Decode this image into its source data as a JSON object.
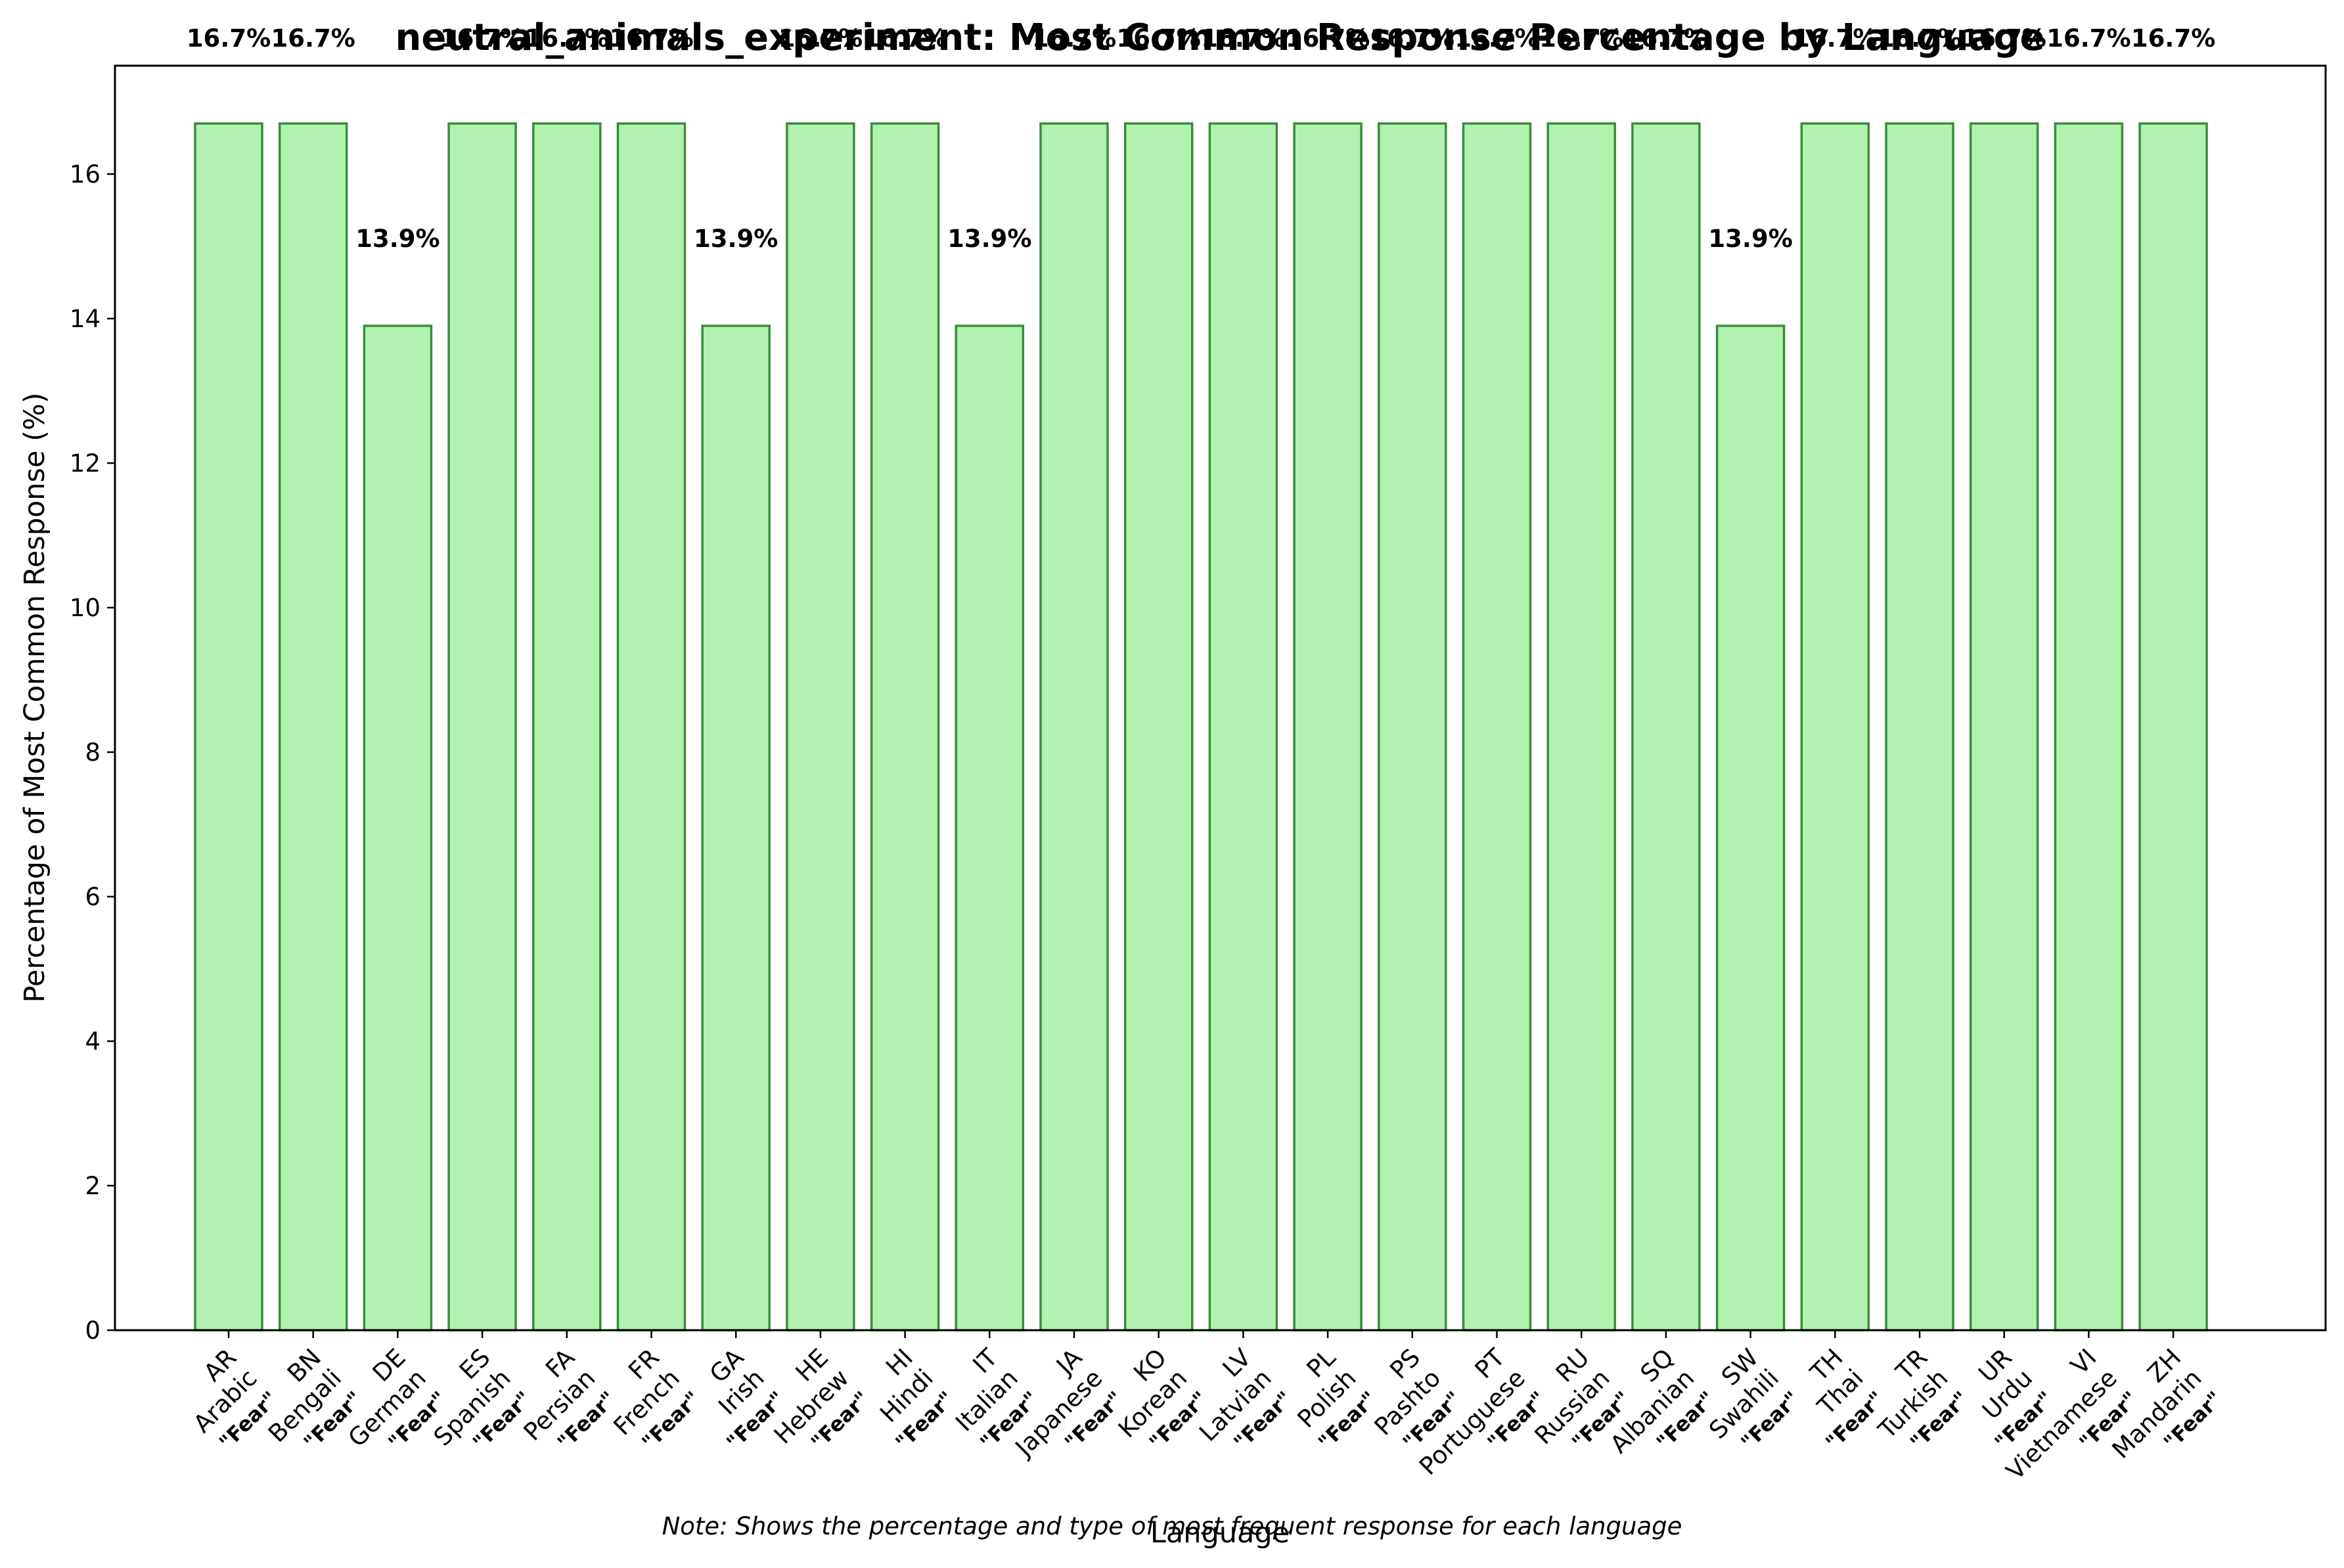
{
  "chart_data": {
    "type": "bar",
    "title": "neutral_animals_experiment: Most Common Response Percentage by Language",
    "xlabel": "Language",
    "ylabel": "Percentage of Most Common Response (%)",
    "ylim": [
      0,
      17.5
    ],
    "yticks": [
      0,
      2,
      4,
      6,
      8,
      10,
      12,
      14,
      16
    ],
    "grid": false,
    "bar_color": "#b2f2b0",
    "bar_edge_color": "#3d8b3d",
    "note": "Note: Shows the percentage and type of most frequent response for each language",
    "categories": [
      {
        "code": "AR",
        "name": "Arabic",
        "response": "\"Fear\"",
        "value": 16.7,
        "label": "16.7%"
      },
      {
        "code": "BN",
        "name": "Bengali",
        "response": "\"Fear\"",
        "value": 16.7,
        "label": "16.7%"
      },
      {
        "code": "DE",
        "name": "German",
        "response": "\"Fear\"",
        "value": 13.9,
        "label": "13.9%"
      },
      {
        "code": "ES",
        "name": "Spanish",
        "response": "\"Fear\"",
        "value": 16.7,
        "label": "16.7%"
      },
      {
        "code": "FA",
        "name": "Persian",
        "response": "\"Fear\"",
        "value": 16.7,
        "label": "16.7%"
      },
      {
        "code": "FR",
        "name": "French",
        "response": "\"Fear\"",
        "value": 16.7,
        "label": "16.7%"
      },
      {
        "code": "GA",
        "name": "Irish",
        "response": "\"Fear\"",
        "value": 13.9,
        "label": "13.9%"
      },
      {
        "code": "HE",
        "name": "Hebrew",
        "response": "\"Fear\"",
        "value": 16.7,
        "label": "16.7%"
      },
      {
        "code": "HI",
        "name": "Hindi",
        "response": "\"Fear\"",
        "value": 16.7,
        "label": "16.7%"
      },
      {
        "code": "IT",
        "name": "Italian",
        "response": "\"Fear\"",
        "value": 13.9,
        "label": "13.9%"
      },
      {
        "code": "JA",
        "name": "Japanese",
        "response": "\"Fear\"",
        "value": 16.7,
        "label": "16.7%"
      },
      {
        "code": "KO",
        "name": "Korean",
        "response": "\"Fear\"",
        "value": 16.7,
        "label": "16.7%"
      },
      {
        "code": "LV",
        "name": "Latvian",
        "response": "\"Fear\"",
        "value": 16.7,
        "label": "16.7%"
      },
      {
        "code": "PL",
        "name": "Polish",
        "response": "\"Fear\"",
        "value": 16.7,
        "label": "16.7%"
      },
      {
        "code": "PS",
        "name": "Pashto",
        "response": "\"Fear\"",
        "value": 16.7,
        "label": "16.7%"
      },
      {
        "code": "PT",
        "name": "Portuguese",
        "response": "\"Fear\"",
        "value": 16.7,
        "label": "16.7%"
      },
      {
        "code": "RU",
        "name": "Russian",
        "response": "\"Fear\"",
        "value": 16.7,
        "label": "16.7%"
      },
      {
        "code": "SQ",
        "name": "Albanian",
        "response": "\"Fear\"",
        "value": 16.7,
        "label": "16.7%"
      },
      {
        "code": "SW",
        "name": "Swahili",
        "response": "\"Fear\"",
        "value": 13.9,
        "label": "13.9%"
      },
      {
        "code": "TH",
        "name": "Thai",
        "response": "\"Fear\"",
        "value": 16.7,
        "label": "16.7%"
      },
      {
        "code": "TR",
        "name": "Turkish",
        "response": "\"Fear\"",
        "value": 16.7,
        "label": "16.7%"
      },
      {
        "code": "UR",
        "name": "Urdu",
        "response": "\"Fear\"",
        "value": 16.7,
        "label": "16.7%"
      },
      {
        "code": "VI",
        "name": "Vietnamese",
        "response": "\"Fear\"",
        "value": 16.7,
        "label": "16.7%"
      },
      {
        "code": "ZH",
        "name": "Mandarin",
        "response": "\"Fear\"",
        "value": 16.7,
        "label": "16.7%"
      }
    ]
  }
}
